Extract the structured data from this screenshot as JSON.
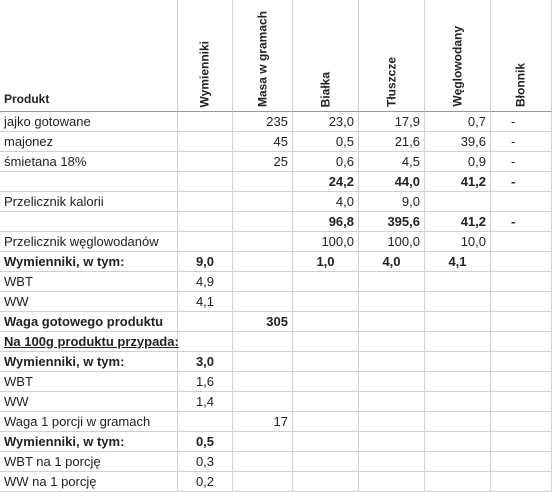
{
  "table": {
    "header": [
      "Produkt",
      "Wymienniki",
      "Masa w gramach",
      "Białka",
      "Tłuszcze",
      "Węglowodany",
      "Błonnik"
    ],
    "rows": [
      {
        "cells": [
          "jajko gotowane",
          null,
          "235",
          "23,0",
          "17,9",
          "0,7",
          "-"
        ]
      },
      {
        "cells": [
          "majonez",
          null,
          "45",
          "0,5",
          "21,6",
          "39,6",
          "-"
        ]
      },
      {
        "cells": [
          "śmietana 18%",
          null,
          "25",
          "0,6",
          "4,5",
          "0,9",
          "-"
        ]
      },
      {
        "cells": [
          null,
          null,
          null,
          "24,2",
          "44,0",
          "41,2",
          "-"
        ],
        "bold": true
      },
      {
        "cells": [
          "Przelicznik kalorii",
          null,
          null,
          "4,0",
          "9,0",
          null,
          null
        ]
      },
      {
        "cells": [
          null,
          null,
          null,
          "96,8",
          "395,6",
          "41,2",
          "-"
        ],
        "bold": true
      },
      {
        "cells": [
          "Przelicznik węglowodanów",
          null,
          null,
          "100,0",
          "100,0",
          "10,0",
          null
        ]
      },
      {
        "cells": [
          "Wymienniki, w tym:",
          "9,0",
          null,
          "1,0",
          "4,0",
          "4,1",
          null
        ],
        "bold": true,
        "align": "center"
      },
      {
        "cells": [
          "WBT",
          "4,9",
          null,
          null,
          null,
          null,
          null
        ]
      },
      {
        "cells": [
          "WW",
          "4,1",
          null,
          null,
          null,
          null,
          null
        ]
      },
      {
        "cells": [
          "Waga gotowego produktu",
          null,
          "305",
          null,
          null,
          null,
          null
        ],
        "bold": true
      },
      {
        "cells": [
          "Na 100g produktu przypada:",
          null,
          null,
          null,
          null,
          null,
          null
        ],
        "bold": true,
        "underline": true
      },
      {
        "cells": [
          "Wymienniki, w tym:",
          "3,0",
          null,
          null,
          null,
          null,
          null
        ],
        "bold": true
      },
      {
        "cells": [
          "WBT",
          "1,6",
          null,
          null,
          null,
          null,
          null
        ]
      },
      {
        "cells": [
          "WW",
          "1,4",
          null,
          null,
          null,
          null,
          null
        ]
      },
      {
        "cells": [
          "Waga 1 porcji w gramach",
          null,
          "17",
          null,
          null,
          null,
          null
        ]
      },
      {
        "cells": [
          "Wymienniki, w tym:",
          "0,5",
          null,
          null,
          null,
          null,
          null
        ],
        "bold": true
      },
      {
        "cells": [
          "WBT na 1 porcję",
          "0,3",
          null,
          null,
          null,
          null,
          null
        ]
      },
      {
        "cells": [
          "WW na 1 porcję",
          "0,2",
          null,
          null,
          null,
          null,
          null
        ]
      }
    ]
  }
}
